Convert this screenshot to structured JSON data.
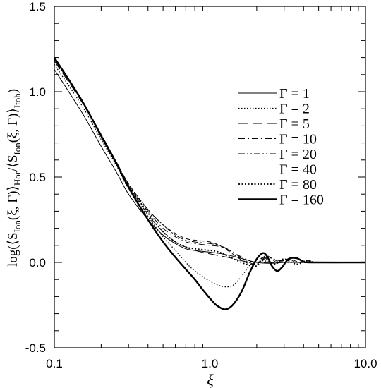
{
  "chart_data": {
    "type": "line",
    "title": "",
    "xlabel": "ξ",
    "ylabel": "log(⟨S_Ion(ξ,Γ)⟩_Hor / ⟨S_Ion(ξ,Γ)⟩_Itoh)",
    "ylabel_parts": {
      "pre": "log(⟨S",
      "sub1": "Ion",
      "mid1": "(ξ, Γ)⟩",
      "sub2": "Hor",
      "mid2": "/⟨S",
      "sub3": "Ion",
      "mid3": "(ξ, Γ)⟩",
      "sub4": "Itoh",
      "post": ")"
    },
    "x_scale": "log",
    "xlim": [
      0.1,
      10.0
    ],
    "ylim": [
      -0.5,
      1.5
    ],
    "x_ticks": [
      {
        "value": 0.1,
        "label": "0.1"
      },
      {
        "value": 1.0,
        "label": "1.0"
      },
      {
        "value": 10.0,
        "label": "10.0"
      }
    ],
    "y_ticks": [
      {
        "value": -0.5,
        "label": "-0.5"
      },
      {
        "value": 0.0,
        "label": "0.0"
      },
      {
        "value": 0.5,
        "label": "0.5"
      },
      {
        "value": 1.0,
        "label": "1.0"
      },
      {
        "value": 1.5,
        "label": "1.5"
      }
    ],
    "grid": false,
    "legend_position": "upper-right",
    "series": [
      {
        "name": "Γ = 1",
        "dash": "solid",
        "width": 1,
        "points": [
          [
            0.1,
            1.13
          ],
          [
            0.15,
            0.88
          ],
          [
            0.2,
            0.68
          ],
          [
            0.25,
            0.53
          ],
          [
            0.3,
            0.4
          ],
          [
            0.4,
            0.25
          ],
          [
            0.5,
            0.16
          ],
          [
            0.6,
            0.11
          ],
          [
            0.7,
            0.08
          ],
          [
            0.8,
            0.07
          ],
          [
            1.0,
            0.06
          ],
          [
            1.2,
            0.05
          ],
          [
            1.5,
            0.03
          ],
          [
            2.0,
            0.0
          ],
          [
            2.5,
            -0.005
          ],
          [
            3.0,
            0.0
          ],
          [
            4.0,
            0.0
          ],
          [
            6.0,
            0.0
          ],
          [
            10.0,
            0.0
          ]
        ]
      },
      {
        "name": "Γ = 2",
        "dash": "dot-fine",
        "width": 1.3,
        "points": [
          [
            0.1,
            1.16
          ],
          [
            0.15,
            0.92
          ],
          [
            0.2,
            0.72
          ],
          [
            0.25,
            0.57
          ],
          [
            0.3,
            0.43
          ],
          [
            0.4,
            0.27
          ],
          [
            0.5,
            0.15
          ],
          [
            0.6,
            0.07
          ],
          [
            0.7,
            0.0
          ],
          [
            0.8,
            -0.05
          ],
          [
            1.0,
            -0.11
          ],
          [
            1.2,
            -0.14
          ],
          [
            1.4,
            -0.135
          ],
          [
            1.6,
            -0.08
          ],
          [
            1.8,
            -0.02
          ],
          [
            2.0,
            0.0
          ],
          [
            2.2,
            0.01
          ],
          [
            2.5,
            0.0
          ],
          [
            3.0,
            0.0
          ],
          [
            10.0,
            0.0
          ]
        ]
      },
      {
        "name": "Γ = 5",
        "dash": "long-dash",
        "width": 1,
        "points": [
          [
            0.1,
            1.18
          ],
          [
            0.15,
            0.94
          ],
          [
            0.2,
            0.74
          ],
          [
            0.25,
            0.58
          ],
          [
            0.3,
            0.45
          ],
          [
            0.4,
            0.28
          ],
          [
            0.5,
            0.18
          ],
          [
            0.6,
            0.12
          ],
          [
            0.7,
            0.09
          ],
          [
            0.8,
            0.07
          ],
          [
            1.0,
            0.05
          ],
          [
            1.3,
            0.03
          ],
          [
            1.6,
            0.01
          ],
          [
            2.0,
            0.0
          ],
          [
            2.5,
            0.0
          ],
          [
            3.0,
            0.0
          ],
          [
            10.0,
            0.0
          ]
        ]
      },
      {
        "name": "Γ = 10",
        "dash": "dash-dot",
        "width": 1,
        "points": [
          [
            0.1,
            1.19
          ],
          [
            0.15,
            0.95
          ],
          [
            0.2,
            0.75
          ],
          [
            0.25,
            0.59
          ],
          [
            0.3,
            0.46
          ],
          [
            0.4,
            0.3
          ],
          [
            0.5,
            0.2
          ],
          [
            0.6,
            0.15
          ],
          [
            0.7,
            0.12
          ],
          [
            0.8,
            0.11
          ],
          [
            1.0,
            0.1
          ],
          [
            1.2,
            0.09
          ],
          [
            1.4,
            0.06
          ],
          [
            1.7,
            0.02
          ],
          [
            2.0,
            0.0
          ],
          [
            2.4,
            0.03
          ],
          [
            2.8,
            0.0
          ],
          [
            3.2,
            0.01
          ],
          [
            3.6,
            0.0
          ],
          [
            10.0,
            0.0
          ]
        ]
      },
      {
        "name": "Γ = 20",
        "dash": "dash-dot-dot",
        "width": 1,
        "points": [
          [
            0.1,
            1.19
          ],
          [
            0.15,
            0.95
          ],
          [
            0.2,
            0.75
          ],
          [
            0.25,
            0.59
          ],
          [
            0.3,
            0.46
          ],
          [
            0.4,
            0.31
          ],
          [
            0.5,
            0.22
          ],
          [
            0.6,
            0.16
          ],
          [
            0.7,
            0.13
          ],
          [
            0.8,
            0.12
          ],
          [
            1.0,
            0.11
          ],
          [
            1.15,
            0.1
          ],
          [
            1.35,
            0.07
          ],
          [
            1.7,
            0.01
          ],
          [
            2.0,
            -0.01
          ],
          [
            2.3,
            0.03
          ],
          [
            2.8,
            0.01
          ],
          [
            3.2,
            0.02
          ],
          [
            3.6,
            0.0
          ],
          [
            4.2,
            0.01
          ],
          [
            5.0,
            0.0
          ],
          [
            10.0,
            0.0
          ]
        ]
      },
      {
        "name": "Γ = 40",
        "dash": "short-dash",
        "width": 1,
        "points": [
          [
            0.1,
            1.19
          ],
          [
            0.15,
            0.95
          ],
          [
            0.2,
            0.75
          ],
          [
            0.25,
            0.59
          ],
          [
            0.3,
            0.46
          ],
          [
            0.4,
            0.31
          ],
          [
            0.5,
            0.22
          ],
          [
            0.6,
            0.17
          ],
          [
            0.7,
            0.14
          ],
          [
            0.8,
            0.13
          ],
          [
            1.0,
            0.12
          ],
          [
            1.15,
            0.1
          ],
          [
            1.35,
            0.06
          ],
          [
            1.7,
            0.0
          ],
          [
            2.0,
            -0.01
          ],
          [
            2.3,
            0.04
          ],
          [
            2.7,
            0.0
          ],
          [
            3.2,
            0.02
          ],
          [
            3.8,
            0.0
          ],
          [
            4.4,
            0.01
          ],
          [
            5.0,
            0.0
          ],
          [
            10.0,
            0.0
          ]
        ]
      },
      {
        "name": "Γ = 80",
        "dash": "dot-coarse",
        "width": 1.8,
        "points": [
          [
            0.1,
            1.19
          ],
          [
            0.15,
            0.95
          ],
          [
            0.2,
            0.74
          ],
          [
            0.25,
            0.58
          ],
          [
            0.3,
            0.45
          ],
          [
            0.4,
            0.29
          ],
          [
            0.5,
            0.18
          ],
          [
            0.6,
            0.12
          ],
          [
            0.7,
            0.09
          ],
          [
            0.8,
            0.08
          ],
          [
            1.0,
            0.07
          ],
          [
            1.15,
            0.06
          ],
          [
            1.35,
            0.03
          ],
          [
            1.7,
            -0.01
          ],
          [
            2.0,
            -0.02
          ],
          [
            2.2,
            0.03
          ],
          [
            2.6,
            -0.01
          ],
          [
            3.0,
            0.02
          ],
          [
            3.6,
            -0.01
          ],
          [
            4.2,
            0.01
          ],
          [
            5.0,
            0.0
          ],
          [
            10.0,
            0.0
          ]
        ]
      },
      {
        "name": "Γ = 160",
        "dash": "solid",
        "width": 2.4,
        "points": [
          [
            0.1,
            1.2
          ],
          [
            0.15,
            0.95
          ],
          [
            0.2,
            0.74
          ],
          [
            0.25,
            0.58
          ],
          [
            0.3,
            0.44
          ],
          [
            0.4,
            0.25
          ],
          [
            0.5,
            0.12
          ],
          [
            0.6,
            0.03
          ],
          [
            0.7,
            -0.04
          ],
          [
            0.8,
            -0.1
          ],
          [
            0.9,
            -0.16
          ],
          [
            1.0,
            -0.21
          ],
          [
            1.1,
            -0.25
          ],
          [
            1.25,
            -0.275
          ],
          [
            1.4,
            -0.25
          ],
          [
            1.6,
            -0.17
          ],
          [
            1.8,
            -0.06
          ],
          [
            2.0,
            0.02
          ],
          [
            2.2,
            0.055
          ],
          [
            2.35,
            0.03
          ],
          [
            2.5,
            -0.02
          ],
          [
            2.7,
            -0.05
          ],
          [
            2.9,
            -0.03
          ],
          [
            3.2,
            0.02
          ],
          [
            3.6,
            0.025
          ],
          [
            4.0,
            0.005
          ],
          [
            4.5,
            0.0
          ],
          [
            10.0,
            0.0
          ]
        ]
      }
    ]
  }
}
